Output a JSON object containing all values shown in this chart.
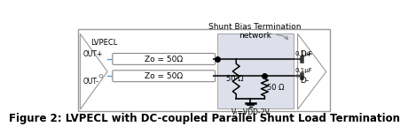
{
  "title": "Figure 2: LVPECL with DC-coupled Parallel Shunt Load Termination",
  "title_fontsize": 8.5,
  "bg_color": "#ffffff",
  "box_bg": "#dde0ea",
  "shunt_label_line1": "Shunt Bias Termination",
  "shunt_label_line2": "network",
  "lvpecl_label": "LVPECL",
  "out_plus_label": "OUT+",
  "out_minus_label": "OUT-",
  "zo_label": "Zo = 50Ω",
  "r1_label": "50 Ω",
  "r2_label": "50 Ω",
  "vt_label": "Vₜ=VDD-2V",
  "cap1_label": "0.1μF",
  "cap2_label": "0.1μF",
  "dp_label": "D+",
  "dm_label": "D-",
  "wire_color_blue": "#5b9bd5",
  "wire_color_dark": "#333333",
  "tri_color": "#999999",
  "box_edge": "#aaaaaa"
}
